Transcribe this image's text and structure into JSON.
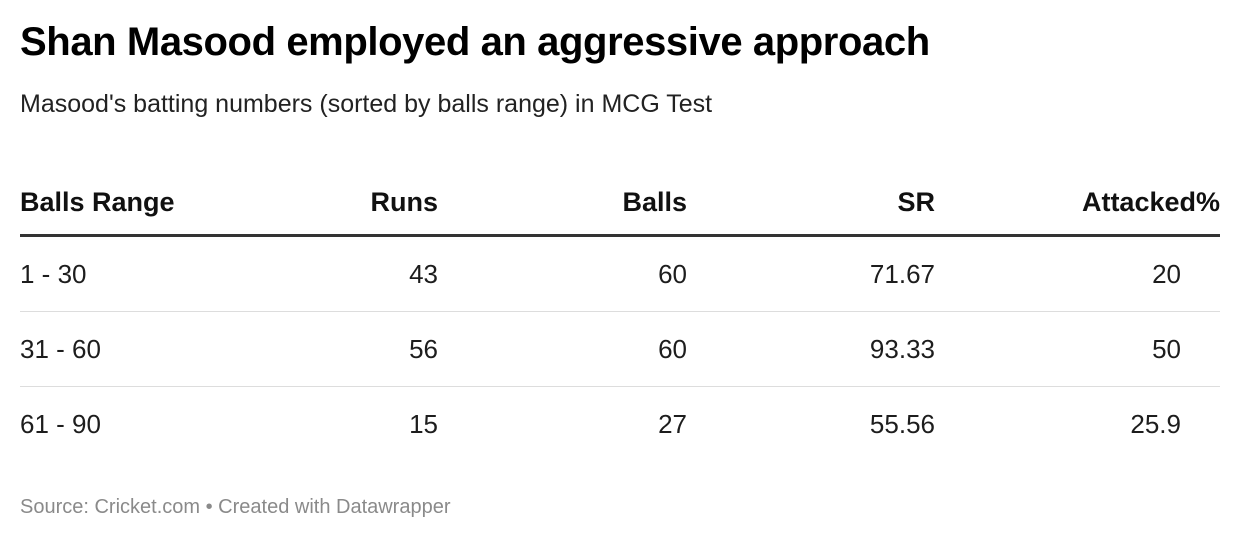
{
  "chart_data": {
    "type": "table",
    "title": "Shan Masood employed an aggressive approach",
    "subtitle": "Masood's batting numbers (sorted by balls range) in MCG Test",
    "columns": [
      "Balls Range",
      "Runs",
      "Balls",
      "SR",
      "Attacked%"
    ],
    "rows": [
      [
        "1 - 30",
        "43",
        "60",
        "71.67",
        "20"
      ],
      [
        "31 - 60",
        "56",
        "60",
        "93.33",
        "50"
      ],
      [
        "61 - 90",
        "15",
        "27",
        "55.56",
        "25.9"
      ]
    ],
    "footer": "Source: Cricket.com • Created with Datawrapper"
  }
}
